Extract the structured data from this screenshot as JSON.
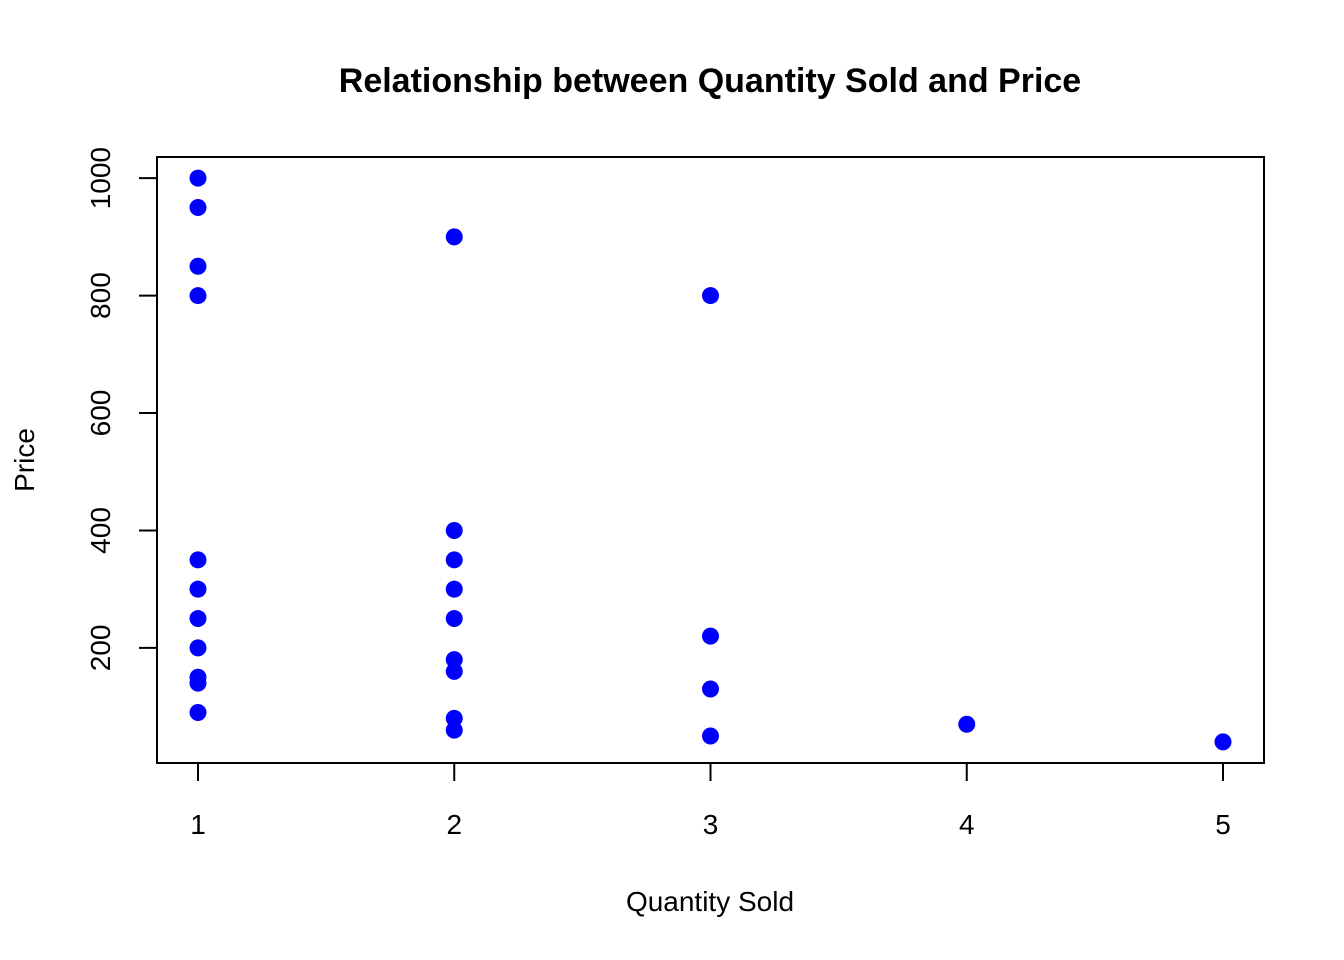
{
  "chart_data": {
    "type": "scatter",
    "title": "Relationship between Quantity Sold and Price",
    "xlabel": "Quantity Sold",
    "ylabel": "Price",
    "xlim": [
      0.84,
      5.16
    ],
    "ylim": [
      4.0,
      1036.0
    ],
    "x_ticks": [
      1,
      2,
      3,
      4,
      5
    ],
    "y_ticks": [
      200,
      400,
      600,
      800,
      1000
    ],
    "grid": false,
    "point_color": "#0000FF",
    "points": [
      {
        "x": 1,
        "y": 1000
      },
      {
        "x": 1,
        "y": 950
      },
      {
        "x": 1,
        "y": 850
      },
      {
        "x": 1,
        "y": 800
      },
      {
        "x": 1,
        "y": 350
      },
      {
        "x": 1,
        "y": 300
      },
      {
        "x": 1,
        "y": 250
      },
      {
        "x": 1,
        "y": 200
      },
      {
        "x": 1,
        "y": 150
      },
      {
        "x": 1,
        "y": 140
      },
      {
        "x": 1,
        "y": 90
      },
      {
        "x": 2,
        "y": 900
      },
      {
        "x": 2,
        "y": 400
      },
      {
        "x": 2,
        "y": 350
      },
      {
        "x": 2,
        "y": 300
      },
      {
        "x": 2,
        "y": 250
      },
      {
        "x": 2,
        "y": 180
      },
      {
        "x": 2,
        "y": 160
      },
      {
        "x": 2,
        "y": 80
      },
      {
        "x": 2,
        "y": 60
      },
      {
        "x": 3,
        "y": 800
      },
      {
        "x": 3,
        "y": 220
      },
      {
        "x": 3,
        "y": 130
      },
      {
        "x": 3,
        "y": 50
      },
      {
        "x": 4,
        "y": 70
      },
      {
        "x": 5,
        "y": 40
      }
    ]
  }
}
